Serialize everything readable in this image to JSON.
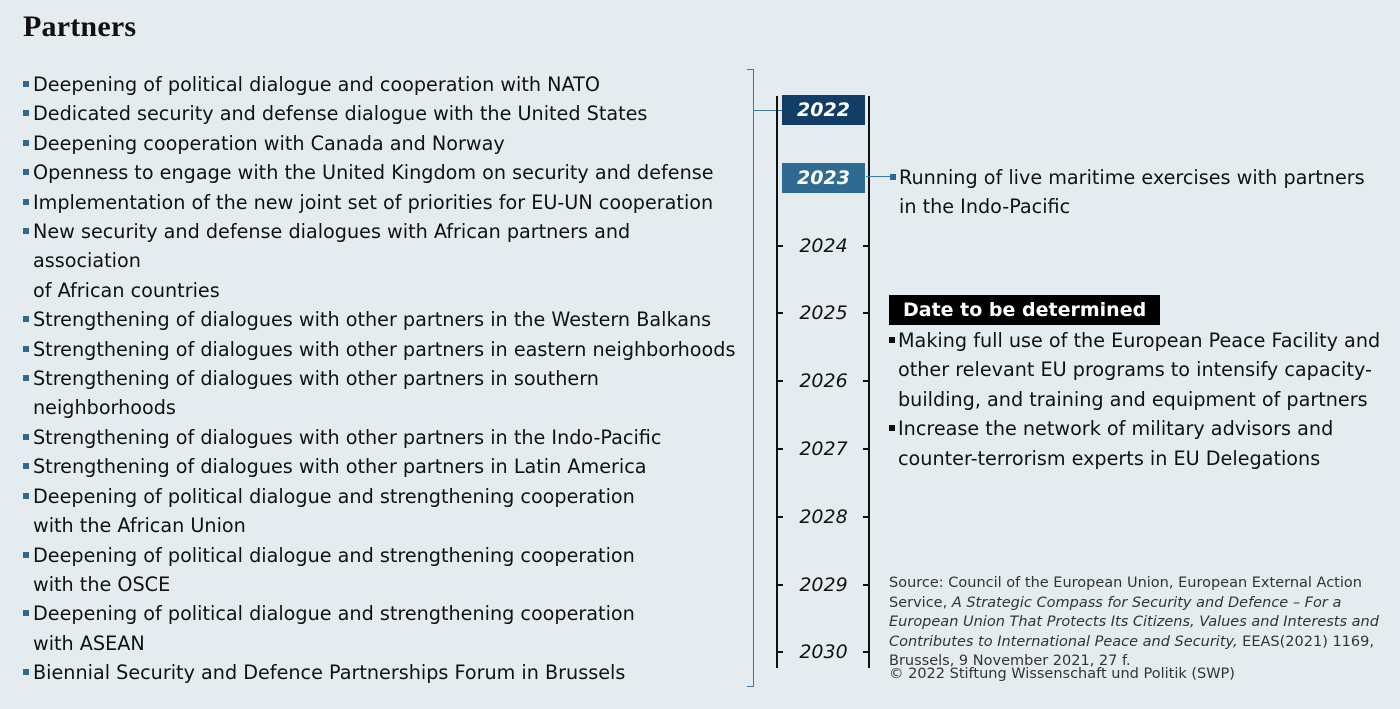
{
  "title": "Partners",
  "left_items": [
    "Deepening of political dialogue and cooperation with NATO",
    "Dedicated security and defense dialogue with the United States",
    "Deepening cooperation with Canada and Norway",
    "Openness to engage with the United Kingdom on security and defense",
    "Implementation of the new joint set of priorities for EU-UN cooperation",
    "New security and defense dialogues with African partners and association\nof African countries",
    "Strengthening of dialogues with other partners in the Western Balkans",
    "Strengthening of dialogues with other partners in eastern neighborhoods",
    "Strengthening of dialogues with other partners in southern neighborhoods",
    "Strengthening of dialogues with other partners in the Indo-Pacific",
    "Strengthening of dialogues with other partners in Latin America",
    "Deepening of political dialogue and strengthening cooperation\nwith the African Union",
    "Deepening of political dialogue and strengthening cooperation\nwith the OSCE",
    "Deepening of political dialogue and strengthening cooperation\nwith ASEAN",
    "Biennial Security and Defence Partnerships Forum in Brussels"
  ],
  "timeline": {
    "years": [
      "2022",
      "2023",
      "2024",
      "2025",
      "2026",
      "2027",
      "2028",
      "2029",
      "2030"
    ],
    "highlight_colors": {
      "2022": "#123d66",
      "2023": "#2f6a93"
    }
  },
  "year_2023_item": "Running of live maritime exercises with partners\nin the Indo-Pacific",
  "tbd": {
    "label": "Date to be determined",
    "items": [
      "Making full use of the European Peace Facility and\nother relevant EU programs to intensify capacity-\nbuilding, and training and equipment of partners",
      "Increase the network of military advisors and\ncounter-terrorism experts in EU Delegations"
    ]
  },
  "source": {
    "prefix": "Source: Council of the European Union, European External Action Service, ",
    "italic": "A Strategic Compass for Security and Defence – For a European Union That Protects Its Citizens, Values and Interests and Contributes to International Peace and Security,",
    "suffix": " EEAS(2021) 1169, Brussels, 9 November 2021, 27 f."
  },
  "copyright": "© 2022 Stiftung Wissenschaft und Politik (SWP)",
  "colors": {
    "background": "#e4ecef",
    "accent_dark": "#123d66",
    "accent": "#2f6a93",
    "bracket": "#3d7aa6"
  }
}
